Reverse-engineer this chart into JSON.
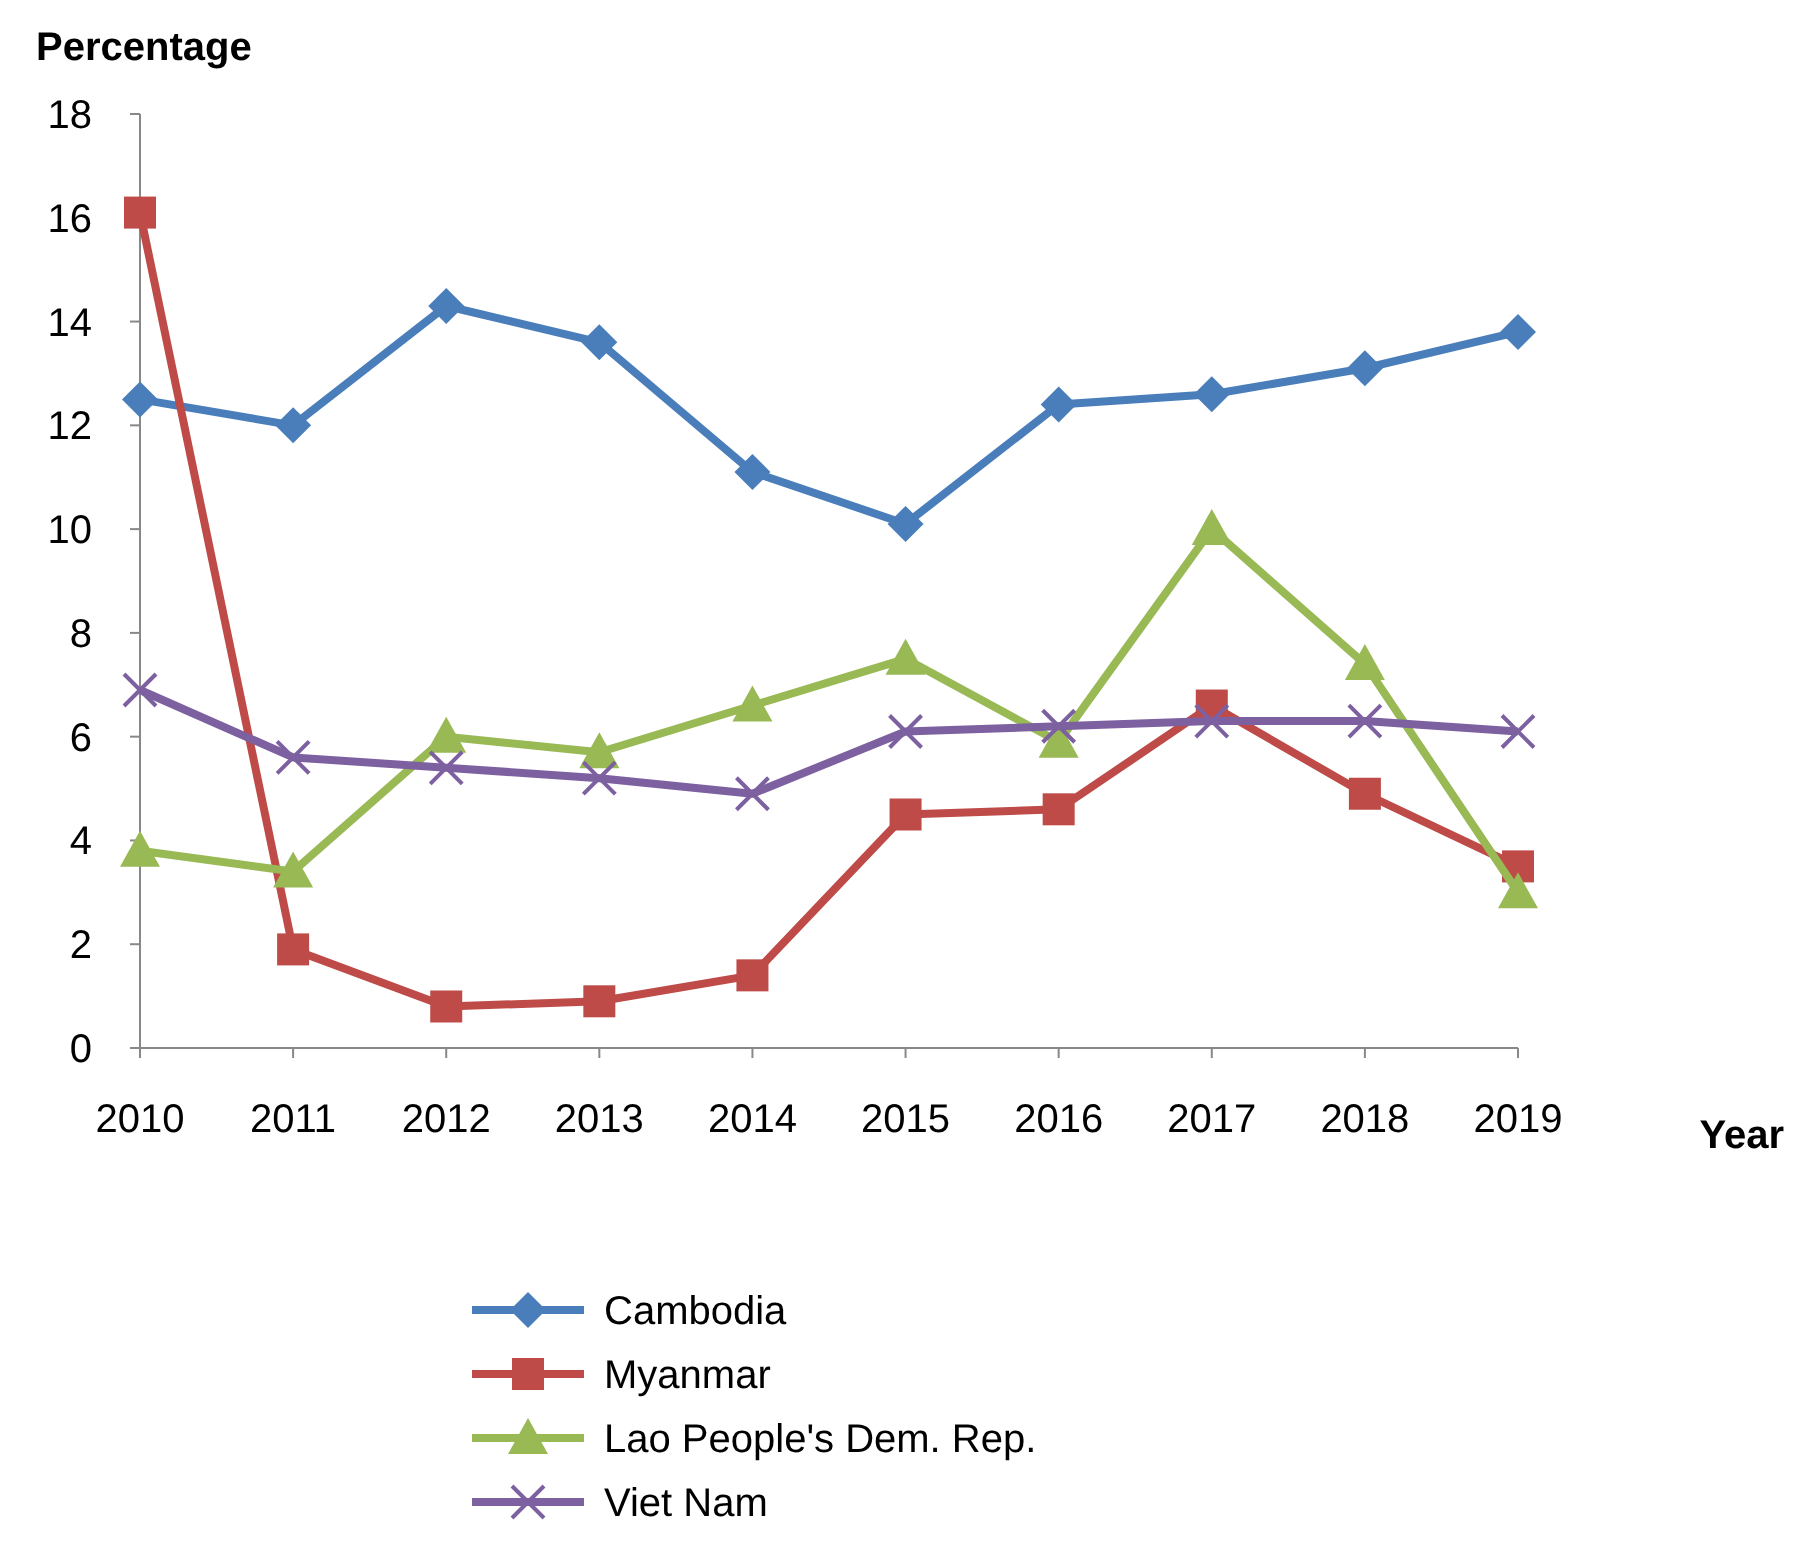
{
  "chart_data": {
    "type": "line",
    "ylabel": "Percentage",
    "xlabel": "Year",
    "categories": [
      "2010",
      "2011",
      "2012",
      "2013",
      "2014",
      "2015",
      "2016",
      "2017",
      "2018",
      "2019"
    ],
    "series": [
      {
        "name": "Cambodia",
        "color": "#4a7ebb",
        "marker": "diamond",
        "values": [
          12.5,
          12.0,
          14.3,
          13.6,
          11.1,
          10.1,
          12.4,
          12.6,
          13.1,
          13.8
        ]
      },
      {
        "name": "Myanmar",
        "color": "#be4b48",
        "marker": "square",
        "values": [
          16.1,
          1.9,
          0.8,
          0.9,
          1.4,
          4.5,
          4.6,
          6.6,
          4.9,
          3.5
        ]
      },
      {
        "name": "Lao People's Dem. Rep.",
        "color": "#98b954",
        "marker": "triangle",
        "values": [
          3.8,
          3.4,
          6.0,
          5.7,
          6.6,
          7.5,
          5.9,
          10.0,
          7.4,
          3.0
        ]
      },
      {
        "name": "Viet Nam",
        "color": "#7d60a0",
        "marker": "cross",
        "values": [
          6.9,
          5.6,
          5.4,
          5.2,
          4.9,
          6.1,
          6.2,
          6.3,
          6.3,
          6.1
        ]
      }
    ],
    "ylim": [
      0,
      18
    ],
    "yticks": [
      0,
      2,
      4,
      6,
      8,
      10,
      12,
      14,
      16,
      18
    ],
    "grid": false,
    "legend": "bottom",
    "line_style": "solid"
  }
}
